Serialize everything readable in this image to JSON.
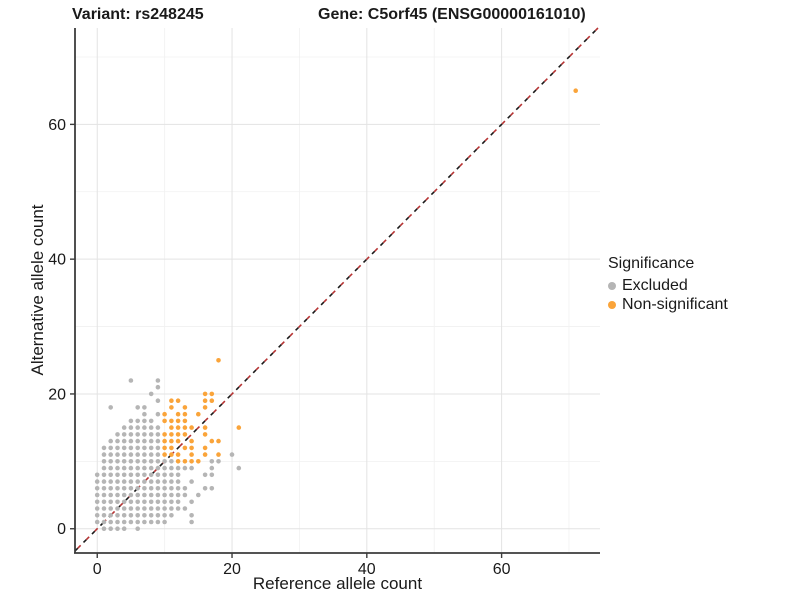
{
  "title": {
    "left": "Variant: rs248245",
    "right": "Gene: C5orf45 (ENSG00000161010)"
  },
  "chart_data": {
    "type": "scatter",
    "xlabel": "Reference allele count",
    "ylabel": "Alternative allele count",
    "xlim": [
      -3.3,
      74.6
    ],
    "ylim": [
      -3.6,
      74.3
    ],
    "xticks": [
      0,
      20,
      40,
      60
    ],
    "yticks": [
      0,
      20,
      40,
      60
    ],
    "minor_gridlines": [
      10,
      30,
      50,
      70
    ],
    "grid": true,
    "background": "#ffffff",
    "major_grid_color": "#e3e3e3",
    "minor_grid_color": "#f1f1f1",
    "axis_line_color": "#3c3c3c",
    "identity_line": {
      "equation": "y = x",
      "style": "dashed",
      "colors": [
        "#1a1a1a",
        "#b73333"
      ]
    },
    "legend": {
      "title": "Significance",
      "position": "right",
      "entries": [
        {
          "label": "Excluded",
          "color": "#b5b5b5"
        },
        {
          "label": "Non-significant",
          "color": "#faa43a"
        }
      ]
    },
    "series": [
      {
        "name": "Excluded",
        "color": "#b5b5b5",
        "points": [
          [
            1,
            0
          ],
          [
            2,
            0
          ],
          [
            3,
            0
          ],
          [
            4,
            0
          ],
          [
            6,
            0
          ],
          [
            0,
            1
          ],
          [
            1,
            1
          ],
          [
            2,
            1
          ],
          [
            3,
            1
          ],
          [
            4,
            1
          ],
          [
            5,
            1
          ],
          [
            6,
            1
          ],
          [
            7,
            1
          ],
          [
            8,
            1
          ],
          [
            9,
            1
          ],
          [
            10,
            1
          ],
          [
            14,
            1
          ],
          [
            0,
            2
          ],
          [
            1,
            2
          ],
          [
            2,
            2
          ],
          [
            3,
            2
          ],
          [
            4,
            2
          ],
          [
            5,
            2
          ],
          [
            6,
            2
          ],
          [
            7,
            2
          ],
          [
            8,
            2
          ],
          [
            9,
            2
          ],
          [
            10,
            2
          ],
          [
            11,
            2
          ],
          [
            14,
            2
          ],
          [
            0,
            3
          ],
          [
            1,
            3
          ],
          [
            2,
            3
          ],
          [
            3,
            3
          ],
          [
            4,
            3
          ],
          [
            5,
            3
          ],
          [
            6,
            3
          ],
          [
            7,
            3
          ],
          [
            8,
            3
          ],
          [
            9,
            3
          ],
          [
            10,
            3
          ],
          [
            11,
            3
          ],
          [
            12,
            3
          ],
          [
            13,
            3
          ],
          [
            0,
            4
          ],
          [
            1,
            4
          ],
          [
            2,
            4
          ],
          [
            3,
            4
          ],
          [
            4,
            4
          ],
          [
            5,
            4
          ],
          [
            6,
            4
          ],
          [
            7,
            4
          ],
          [
            8,
            4
          ],
          [
            9,
            4
          ],
          [
            10,
            4
          ],
          [
            11,
            4
          ],
          [
            12,
            4
          ],
          [
            14,
            4
          ],
          [
            0,
            5
          ],
          [
            1,
            5
          ],
          [
            2,
            5
          ],
          [
            3,
            5
          ],
          [
            4,
            5
          ],
          [
            5,
            5
          ],
          [
            6,
            5
          ],
          [
            7,
            5
          ],
          [
            8,
            5
          ],
          [
            9,
            5
          ],
          [
            10,
            5
          ],
          [
            11,
            5
          ],
          [
            12,
            5
          ],
          [
            13,
            5
          ],
          [
            15,
            5
          ],
          [
            0,
            6
          ],
          [
            1,
            6
          ],
          [
            2,
            6
          ],
          [
            3,
            6
          ],
          [
            4,
            6
          ],
          [
            5,
            6
          ],
          [
            6,
            6
          ],
          [
            7,
            6
          ],
          [
            8,
            6
          ],
          [
            9,
            6
          ],
          [
            10,
            6
          ],
          [
            11,
            6
          ],
          [
            12,
            6
          ],
          [
            13,
            6
          ],
          [
            16,
            6
          ],
          [
            17,
            6
          ],
          [
            0,
            7
          ],
          [
            1,
            7
          ],
          [
            2,
            7
          ],
          [
            3,
            7
          ],
          [
            4,
            7
          ],
          [
            5,
            7
          ],
          [
            6,
            7
          ],
          [
            7,
            7
          ],
          [
            8,
            7
          ],
          [
            9,
            7
          ],
          [
            10,
            7
          ],
          [
            11,
            7
          ],
          [
            12,
            7
          ],
          [
            14,
            7
          ],
          [
            0,
            8
          ],
          [
            1,
            8
          ],
          [
            2,
            8
          ],
          [
            3,
            8
          ],
          [
            4,
            8
          ],
          [
            5,
            8
          ],
          [
            6,
            8
          ],
          [
            7,
            8
          ],
          [
            8,
            8
          ],
          [
            9,
            8
          ],
          [
            10,
            8
          ],
          [
            11,
            8
          ],
          [
            12,
            8
          ],
          [
            16,
            8
          ],
          [
            17,
            8
          ],
          [
            1,
            9
          ],
          [
            2,
            9
          ],
          [
            3,
            9
          ],
          [
            4,
            9
          ],
          [
            5,
            9
          ],
          [
            6,
            9
          ],
          [
            7,
            9
          ],
          [
            8,
            9
          ],
          [
            9,
            9
          ],
          [
            10,
            9
          ],
          [
            11,
            9
          ],
          [
            12,
            9
          ],
          [
            13,
            9
          ],
          [
            14,
            9
          ],
          [
            17,
            9
          ],
          [
            21,
            9
          ],
          [
            1,
            10
          ],
          [
            2,
            10
          ],
          [
            3,
            10
          ],
          [
            4,
            10
          ],
          [
            5,
            10
          ],
          [
            6,
            10
          ],
          [
            7,
            10
          ],
          [
            8,
            10
          ],
          [
            9,
            10
          ],
          [
            10,
            10
          ],
          [
            11,
            10
          ],
          [
            17,
            10
          ],
          [
            18,
            10
          ],
          [
            1,
            11
          ],
          [
            2,
            11
          ],
          [
            3,
            11
          ],
          [
            4,
            11
          ],
          [
            5,
            11
          ],
          [
            6,
            11
          ],
          [
            7,
            11
          ],
          [
            8,
            11
          ],
          [
            9,
            11
          ],
          [
            20,
            11
          ],
          [
            1,
            12
          ],
          [
            2,
            12
          ],
          [
            3,
            12
          ],
          [
            4,
            12
          ],
          [
            5,
            12
          ],
          [
            6,
            12
          ],
          [
            7,
            12
          ],
          [
            8,
            12
          ],
          [
            9,
            12
          ],
          [
            2,
            13
          ],
          [
            3,
            13
          ],
          [
            4,
            13
          ],
          [
            5,
            13
          ],
          [
            6,
            13
          ],
          [
            7,
            13
          ],
          [
            8,
            13
          ],
          [
            9,
            13
          ],
          [
            3,
            14
          ],
          [
            4,
            14
          ],
          [
            5,
            14
          ],
          [
            6,
            14
          ],
          [
            7,
            14
          ],
          [
            8,
            14
          ],
          [
            9,
            14
          ],
          [
            4,
            15
          ],
          [
            5,
            15
          ],
          [
            6,
            15
          ],
          [
            7,
            15
          ],
          [
            8,
            15
          ],
          [
            9,
            15
          ],
          [
            5,
            16
          ],
          [
            6,
            16
          ],
          [
            7,
            16
          ],
          [
            8,
            16
          ],
          [
            7,
            17
          ],
          [
            9,
            17
          ],
          [
            2,
            18
          ],
          [
            6,
            18
          ],
          [
            7,
            18
          ],
          [
            9,
            19
          ],
          [
            8,
            20
          ],
          [
            9,
            21
          ],
          [
            5,
            22
          ],
          [
            9,
            22
          ]
        ]
      },
      {
        "name": "Non-significant",
        "color": "#faa43a",
        "points": [
          [
            18,
            25
          ],
          [
            16,
            20
          ],
          [
            17,
            20
          ],
          [
            11,
            19
          ],
          [
            12,
            19
          ],
          [
            16,
            19
          ],
          [
            17,
            19
          ],
          [
            11,
            18
          ],
          [
            13,
            18
          ],
          [
            16,
            18
          ],
          [
            10,
            17
          ],
          [
            12,
            17
          ],
          [
            13,
            17
          ],
          [
            15,
            17
          ],
          [
            10,
            16
          ],
          [
            11,
            16
          ],
          [
            12,
            16
          ],
          [
            13,
            16
          ],
          [
            11,
            15
          ],
          [
            12,
            15
          ],
          [
            13,
            15
          ],
          [
            14,
            15
          ],
          [
            16,
            15
          ],
          [
            21,
            15
          ],
          [
            10,
            14
          ],
          [
            11,
            14
          ],
          [
            12,
            14
          ],
          [
            13,
            14
          ],
          [
            16,
            14
          ],
          [
            10,
            13
          ],
          [
            11,
            13
          ],
          [
            12,
            13
          ],
          [
            14,
            13
          ],
          [
            17,
            13
          ],
          [
            18,
            13
          ],
          [
            10,
            12
          ],
          [
            11,
            12
          ],
          [
            13,
            12
          ],
          [
            14,
            12
          ],
          [
            16,
            12
          ],
          [
            10,
            11
          ],
          [
            11,
            11
          ],
          [
            12,
            11
          ],
          [
            14,
            11
          ],
          [
            16,
            11
          ],
          [
            18,
            11
          ],
          [
            12,
            10
          ],
          [
            13,
            10
          ],
          [
            14,
            10
          ],
          [
            15,
            10
          ],
          [
            71,
            65
          ]
        ]
      }
    ]
  }
}
